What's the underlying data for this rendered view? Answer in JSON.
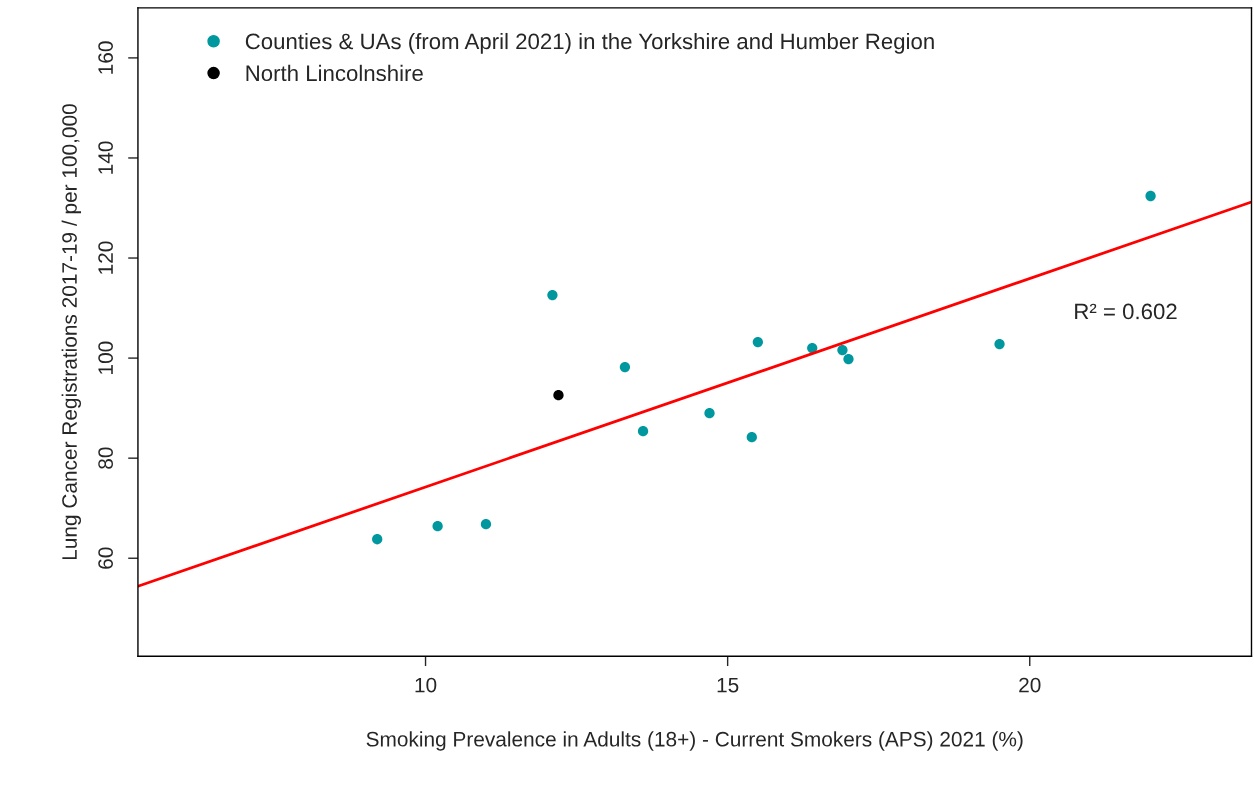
{
  "chart_data": {
    "type": "scatter",
    "xlabel": "Smoking Prevalence in Adults (18+) - Current Smokers (APS) 2021 (%)",
    "ylabel": "Lung Cancer Registrations 2017-19 / per 100,000",
    "annotations": [
      "R² = 0.602"
    ],
    "series": [
      {
        "name": "Counties & UAs (from April 2021) in the Yorkshire and Humber Region",
        "color": "#00989e",
        "x": [
          9.2,
          10.2,
          11.0,
          12.1,
          13.3,
          13.6,
          14.7,
          15.4,
          15.5,
          16.4,
          16.9,
          17.0,
          19.5,
          22.0
        ],
        "values": [
          63.8,
          66.4,
          66.8,
          112.6,
          98.2,
          85.4,
          89.0,
          84.2,
          103.2,
          102.0,
          101.6,
          99.8,
          102.8,
          132.4
        ]
      },
      {
        "name": "North Lincolnshire",
        "color": "#000000",
        "x": [
          12.2
        ],
        "values": [
          92.6
        ]
      },
      {
        "type": "line",
        "marker": "none",
        "color": "#ff0000",
        "x": [
          5.24,
          23.67
        ],
        "values": [
          54.4,
          131.2
        ]
      }
    ],
    "xlim": [
      5.24,
      23.67
    ],
    "ylim": [
      40.4,
      170
    ],
    "xticks": [
      10,
      15,
      20
    ],
    "yticks": [
      60,
      80,
      100,
      120,
      140,
      160
    ],
    "marker": "circle",
    "grid": false,
    "legend": "top left"
  }
}
